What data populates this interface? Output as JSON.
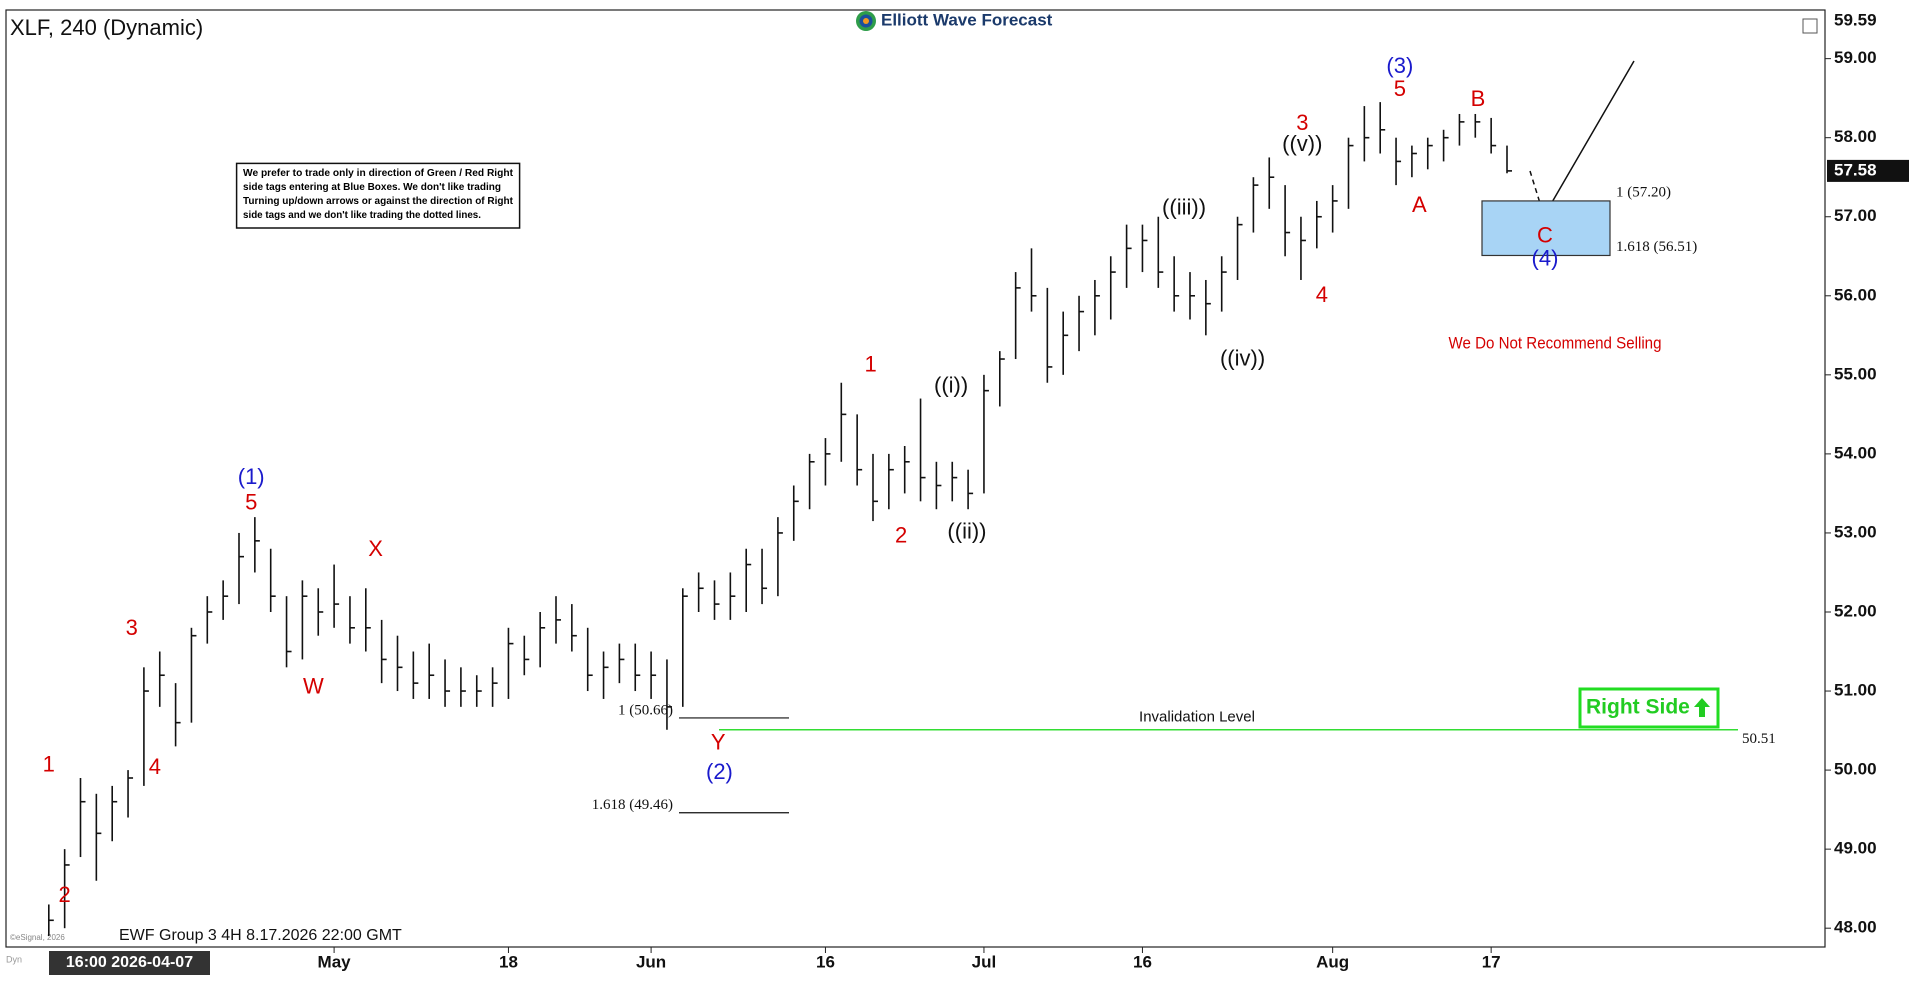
{
  "chart_data": {
    "type": "ohlc",
    "title": "XLF, 240 (Dynamic)",
    "logo": "Elliott Wave Forecast",
    "footer": "EWF Group 3 4H 8.17.2026 22:00 GMT",
    "cursor_label": "16:00 2026-04-07",
    "copyright": "©eSignal, 2026",
    "corner_label": "Dyn",
    "note": [
      "We prefer to trade only in direction of Green / Red Right",
      "side tags entering at Blue Boxes. We don't like trading",
      "Turning up/down arrows or against the direction of Right",
      "side tags and we don't like trading the dotted lines."
    ],
    "recommendation": "We Do Not Recommend Selling",
    "right_side_tag": "Right Side",
    "color": "#111111",
    "categories": [
      "2026-04-07",
      "2026-04-08",
      "2026-04-09",
      "2026-04-10",
      "2026-04-13",
      "2026-04-14",
      "2026-04-15",
      "2026-04-16",
      "2026-04-17",
      "2026-04-20",
      "2026-04-21",
      "2026-04-22",
      "2026-04-23",
      "2026-04-24",
      "2026-04-27",
      "2026-04-28",
      "2026-04-29",
      "2026-04-30",
      "2026-05-01",
      "2026-05-04",
      "2026-05-05",
      "2026-05-06",
      "2026-05-07",
      "2026-05-08",
      "2026-05-11",
      "2026-05-12",
      "2026-05-13",
      "2026-05-14",
      "2026-05-15",
      "2026-05-18",
      "2026-05-19",
      "2026-05-20",
      "2026-05-21",
      "2026-05-22",
      "2026-05-26",
      "2026-05-27",
      "2026-05-28",
      "2026-05-29",
      "2026-06-01",
      "2026-06-02",
      "2026-06-03",
      "2026-06-04",
      "2026-06-05",
      "2026-06-08",
      "2026-06-09",
      "2026-06-10",
      "2026-06-11",
      "2026-06-12",
      "2026-06-15",
      "2026-06-16",
      "2026-06-17",
      "2026-06-18",
      "2026-06-22",
      "2026-06-23",
      "2026-06-24",
      "2026-06-25",
      "2026-06-26",
      "2026-06-29",
      "2026-06-30",
      "2026-07-01",
      "2026-07-02",
      "2026-07-06",
      "2026-07-07",
      "2026-07-08",
      "2026-07-09",
      "2026-07-10",
      "2026-07-13",
      "2026-07-14",
      "2026-07-15",
      "2026-07-16",
      "2026-07-17",
      "2026-07-20",
      "2026-07-21",
      "2026-07-22",
      "2026-07-23",
      "2026-07-24",
      "2026-07-27",
      "2026-07-28",
      "2026-07-29",
      "2026-07-30",
      "2026-07-31",
      "2026-08-03",
      "2026-08-04",
      "2026-08-05",
      "2026-08-06",
      "2026-08-07",
      "2026-08-10",
      "2026-08-11",
      "2026-08-12",
      "2026-08-13",
      "2026-08-14",
      "2026-08-17",
      "2026-08-18"
    ],
    "high": [
      48.3,
      49.0,
      49.9,
      49.7,
      49.8,
      50.0,
      51.3,
      51.5,
      51.1,
      51.8,
      52.2,
      52.4,
      53.0,
      53.2,
      52.8,
      52.2,
      52.4,
      52.3,
      52.6,
      52.2,
      52.3,
      51.9,
      51.7,
      51.5,
      51.6,
      51.4,
      51.3,
      51.2,
      51.3,
      51.8,
      51.7,
      52.0,
      52.2,
      52.1,
      51.8,
      51.5,
      51.6,
      51.6,
      51.5,
      51.4,
      52.3,
      52.5,
      52.4,
      52.5,
      52.8,
      52.8,
      53.2,
      53.6,
      54.0,
      54.2,
      54.9,
      54.5,
      54.0,
      54.0,
      54.1,
      54.7,
      53.9,
      53.9,
      53.8,
      55.0,
      55.3,
      56.3,
      56.6,
      56.1,
      55.8,
      56.0,
      56.2,
      56.5,
      56.9,
      56.9,
      57.0,
      56.5,
      56.3,
      56.2,
      56.5,
      57.0,
      57.5,
      57.75,
      57.4,
      57.0,
      57.2,
      57.4,
      58.0,
      58.4,
      58.45,
      58.0,
      57.9,
      58.0,
      58.1,
      58.3,
      58.3,
      58.25,
      57.9
    ],
    "low": [
      47.9,
      48.0,
      48.9,
      48.6,
      49.1,
      49.4,
      49.8,
      50.8,
      50.3,
      50.6,
      51.6,
      51.9,
      52.1,
      52.5,
      52.0,
      51.3,
      51.4,
      51.7,
      51.8,
      51.6,
      51.5,
      51.1,
      51.0,
      50.9,
      50.9,
      50.8,
      50.8,
      50.8,
      50.8,
      50.9,
      51.2,
      51.3,
      51.6,
      51.5,
      51.0,
      50.9,
      51.1,
      51.0,
      50.9,
      50.51,
      50.8,
      52.0,
      51.9,
      51.9,
      52.0,
      52.1,
      52.2,
      52.9,
      53.3,
      53.6,
      53.9,
      53.6,
      53.15,
      53.3,
      53.5,
      53.4,
      53.3,
      53.4,
      53.3,
      53.5,
      54.6,
      55.2,
      55.8,
      54.9,
      55.0,
      55.3,
      55.5,
      55.7,
      56.1,
      56.3,
      56.1,
      55.8,
      55.7,
      55.5,
      55.8,
      56.2,
      56.8,
      57.1,
      56.5,
      56.2,
      56.6,
      56.8,
      57.1,
      57.7,
      57.8,
      57.4,
      57.5,
      57.6,
      57.7,
      57.9,
      58.0,
      57.8,
      57.55
    ],
    "close": [
      48.1,
      48.8,
      49.6,
      49.2,
      49.6,
      49.9,
      51.0,
      51.2,
      50.6,
      51.7,
      52.0,
      52.2,
      52.7,
      52.9,
      52.2,
      51.5,
      52.2,
      52.0,
      52.1,
      51.8,
      51.8,
      51.4,
      51.3,
      51.1,
      51.2,
      51.0,
      51.0,
      51.0,
      51.1,
      51.6,
      51.4,
      51.8,
      51.9,
      51.7,
      51.2,
      51.3,
      51.4,
      51.2,
      51.2,
      50.8,
      52.2,
      52.3,
      52.1,
      52.2,
      52.6,
      52.3,
      53.0,
      53.4,
      53.9,
      54.0,
      54.5,
      53.8,
      53.4,
      53.8,
      53.9,
      53.7,
      53.6,
      53.7,
      53.5,
      54.8,
      55.2,
      56.1,
      56.0,
      55.1,
      55.5,
      55.8,
      56.0,
      56.3,
      56.6,
      56.7,
      56.3,
      56.0,
      56.0,
      55.9,
      56.3,
      56.9,
      57.4,
      57.5,
      56.8,
      56.7,
      57.0,
      57.2,
      57.9,
      58.0,
      58.1,
      57.7,
      57.8,
      57.9,
      58.0,
      58.2,
      58.2,
      57.9,
      57.58
    ],
    "last_price": 57.58,
    "ylim": [
      47.8,
      59.59
    ],
    "yticks": [
      {
        "value": 48,
        "label": "48.00"
      },
      {
        "value": 49,
        "label": "49.00"
      },
      {
        "value": 50,
        "label": "50.00"
      },
      {
        "value": 51,
        "label": "51.00"
      },
      {
        "value": 52,
        "label": "52.00"
      },
      {
        "value": 53,
        "label": "53.00"
      },
      {
        "value": 54,
        "label": "54.00"
      },
      {
        "value": 55,
        "label": "55.00"
      },
      {
        "value": 56,
        "label": "56.00"
      },
      {
        "value": 57,
        "label": "57.00"
      },
      {
        "value": 58,
        "label": "58.00"
      },
      {
        "value": 59,
        "label": "59.00"
      }
    ],
    "xticks": [
      {
        "value": "2026-05-01",
        "label": "May"
      },
      {
        "value": "2026-05-18",
        "label": "18"
      },
      {
        "value": "2026-06-01",
        "label": "Jun"
      },
      {
        "value": "2026-06-16",
        "label": "16"
      },
      {
        "value": "2026-07-01",
        "label": "Jul"
      },
      {
        "value": "2026-07-16",
        "label": "16"
      },
      {
        "value": "2026-08-03",
        "label": "Aug"
      },
      {
        "value": "2026-08-17",
        "label": "17"
      }
    ],
    "fib_levels": [
      {
        "value": 50.66,
        "label": "1 (50.66)"
      },
      {
        "value": 49.46,
        "label": "1.618 (49.46)"
      },
      {
        "value": 57.2,
        "label": "1 (57.20)"
      },
      {
        "value": 56.51,
        "label": "1.618 (56.51)"
      }
    ],
    "invalidation_level": 50.51,
    "invalidation_text": "Invalidation Level",
    "annotations": [
      {
        "text": "1",
        "color": "#d40000"
      },
      {
        "text": "2",
        "color": "#d40000"
      },
      {
        "text": "3",
        "color": "#d40000"
      },
      {
        "text": "4",
        "color": "#d40000"
      },
      {
        "text": "5",
        "color": "#d40000"
      },
      {
        "text": "(1)",
        "color": "#1a1acc"
      },
      {
        "text": "W",
        "color": "#d40000"
      },
      {
        "text": "X",
        "color": "#d40000"
      },
      {
        "text": "Y",
        "color": "#d40000"
      },
      {
        "text": "(2)",
        "color": "#1a1acc"
      },
      {
        "text": "1",
        "color": "#d40000"
      },
      {
        "text": "2",
        "color": "#d40000"
      },
      {
        "text": "((i))",
        "color": "#111111"
      },
      {
        "text": "((ii))",
        "color": "#111111"
      },
      {
        "text": "((iii))",
        "color": "#111111"
      },
      {
        "text": "((iv))",
        "color": "#111111"
      },
      {
        "text": "((v))",
        "color": "#111111"
      },
      {
        "text": "3",
        "color": "#d40000"
      },
      {
        "text": "4",
        "color": "#d40000"
      },
      {
        "text": "5",
        "color": "#d40000"
      },
      {
        "text": "(3)",
        "color": "#1a1acc"
      },
      {
        "text": "A",
        "color": "#d40000"
      },
      {
        "text": "B",
        "color": "#d40000"
      },
      {
        "text": "C",
        "color": "#d40000"
      },
      {
        "text": "(4)",
        "color": "#1a1acc"
      }
    ]
  }
}
